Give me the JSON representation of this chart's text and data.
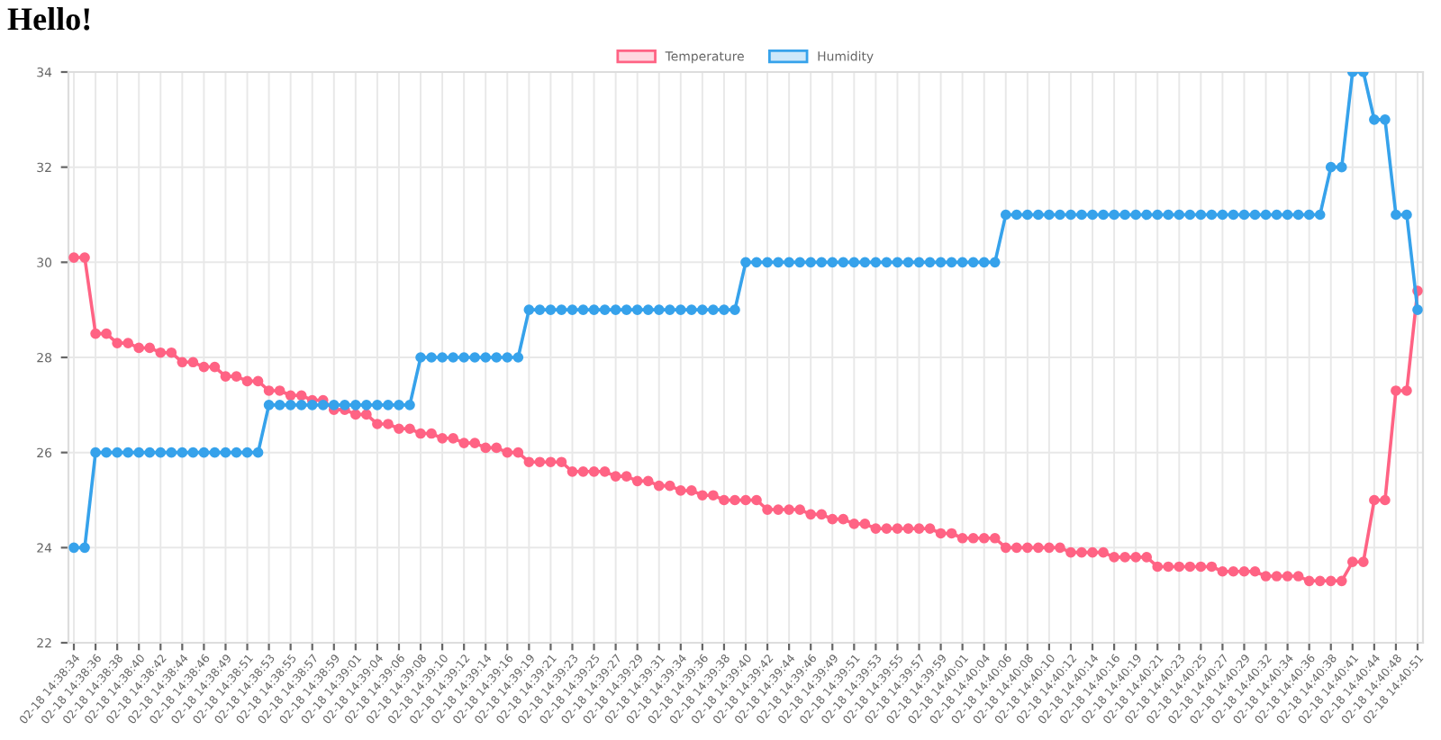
{
  "chart_data": {
    "type": "line",
    "title": "Hello!",
    "categories": [
      "02-18 14:38:34",
      null,
      "02-18 14:38:36",
      null,
      "02-18 14:38:38",
      null,
      "02-18 14:38:40",
      null,
      "02-18 14:38:42",
      null,
      "02-18 14:38:44",
      null,
      "02-18 14:38:46",
      null,
      "02-18 14:38:49",
      null,
      "02-18 14:38:51",
      null,
      "02-18 14:38:53",
      null,
      "02-18 14:38:55",
      null,
      "02-18 14:38:57",
      null,
      "02-18 14:38:59",
      null,
      "02-18 14:39:01",
      null,
      "02-18 14:39:04",
      null,
      "02-18 14:39:06",
      null,
      "02-18 14:39:08",
      null,
      "02-18 14:39:10",
      null,
      "02-18 14:39:12",
      null,
      "02-18 14:39:14",
      null,
      "02-18 14:39:16",
      null,
      "02-18 14:39:19",
      null,
      "02-18 14:39:21",
      null,
      "02-18 14:39:23",
      null,
      "02-18 14:39:25",
      null,
      "02-18 14:39:27",
      null,
      "02-18 14:39:29",
      null,
      "02-18 14:39:31",
      null,
      "02-18 14:39:34",
      null,
      "02-18 14:39:36",
      null,
      "02-18 14:39:38",
      null,
      "02-18 14:39:40",
      null,
      "02-18 14:39:42",
      null,
      "02-18 14:39:44",
      null,
      "02-18 14:39:46",
      null,
      "02-18 14:39:49",
      null,
      "02-18 14:39:51",
      null,
      "02-18 14:39:53",
      null,
      "02-18 14:39:55",
      null,
      "02-18 14:39:57",
      null,
      "02-18 14:39:59",
      null,
      "02-18 14:40:01",
      null,
      "02-18 14:40:04",
      null,
      "02-18 14:40:06",
      null,
      "02-18 14:40:08",
      null,
      "02-18 14:40:10",
      null,
      "02-18 14:40:12",
      null,
      "02-18 14:40:14",
      null,
      "02-18 14:40:16",
      null,
      "02-18 14:40:19",
      null,
      "02-18 14:40:21",
      null,
      "02-18 14:40:23",
      null,
      "02-18 14:40:25",
      null,
      "02-18 14:40:27",
      null,
      "02-18 14:40:29",
      null,
      "02-18 14:40:32",
      null,
      "02-18 14:40:34",
      null,
      "02-18 14:40:36",
      null,
      "02-18 14:40:38",
      null,
      "02-18 14:40:41",
      null,
      "02-18 14:40:44",
      null,
      "02-18 14:40:48",
      null,
      "02-18 14:40:51"
    ],
    "series": [
      {
        "name": "Temperature",
        "color": "#ff6384",
        "values": [
          30.1,
          30.1,
          28.5,
          28.5,
          28.3,
          28.3,
          28.2,
          28.2,
          28.1,
          28.1,
          27.9,
          27.9,
          27.8,
          27.8,
          27.6,
          27.6,
          27.5,
          27.5,
          27.3,
          27.3,
          27.2,
          27.2,
          27.1,
          27.1,
          26.9,
          26.9,
          26.8,
          26.8,
          26.6,
          26.6,
          26.5,
          26.5,
          26.4,
          26.4,
          26.3,
          26.3,
          26.2,
          26.2,
          26.1,
          26.1,
          26.0,
          26.0,
          25.8,
          25.8,
          25.8,
          25.8,
          25.6,
          25.6,
          25.6,
          25.6,
          25.5,
          25.5,
          25.4,
          25.4,
          25.3,
          25.3,
          25.2,
          25.2,
          25.1,
          25.1,
          25.0,
          25.0,
          25.0,
          25.0,
          24.8,
          24.8,
          24.8,
          24.8,
          24.7,
          24.7,
          24.6,
          24.6,
          24.5,
          24.5,
          24.4,
          24.4,
          24.4,
          24.4,
          24.4,
          24.4,
          24.3,
          24.3,
          24.2,
          24.2,
          24.2,
          24.2,
          24.0,
          24.0,
          24.0,
          24.0,
          24.0,
          24.0,
          23.9,
          23.9,
          23.9,
          23.9,
          23.8,
          23.8,
          23.8,
          23.8,
          23.6,
          23.6,
          23.6,
          23.6,
          23.6,
          23.6,
          23.5,
          23.5,
          23.5,
          23.5,
          23.4,
          23.4,
          23.4,
          23.4,
          23.3,
          23.3,
          23.3,
          23.3,
          23.7,
          23.7,
          25.0,
          25.0,
          27.3,
          27.3,
          29.4
        ]
      },
      {
        "name": "Humidity",
        "color": "#36a2eb",
        "values": [
          24,
          24,
          26,
          26,
          26,
          26,
          26,
          26,
          26,
          26,
          26,
          26,
          26,
          26,
          26,
          26,
          26,
          26,
          27,
          27,
          27,
          27,
          27,
          27,
          27,
          27,
          27,
          27,
          27,
          27,
          27,
          27,
          28,
          28,
          28,
          28,
          28,
          28,
          28,
          28,
          28,
          28,
          29,
          29,
          29,
          29,
          29,
          29,
          29,
          29,
          29,
          29,
          29,
          29,
          29,
          29,
          29,
          29,
          29,
          29,
          29,
          29,
          30,
          30,
          30,
          30,
          30,
          30,
          30,
          30,
          30,
          30,
          30,
          30,
          30,
          30,
          30,
          30,
          30,
          30,
          30,
          30,
          30,
          30,
          30,
          30,
          31,
          31,
          31,
          31,
          31,
          31,
          31,
          31,
          31,
          31,
          31,
          31,
          31,
          31,
          31,
          31,
          31,
          31,
          31,
          31,
          31,
          31,
          31,
          31,
          31,
          31,
          31,
          31,
          31,
          31,
          32,
          32,
          34,
          34,
          33,
          33,
          31,
          31,
          29
        ]
      }
    ],
    "ylim": [
      22,
      34
    ],
    "yticks": [
      22,
      24,
      26,
      28,
      30,
      32,
      34
    ],
    "grid": true,
    "legend": "top",
    "marker": "circle",
    "line_style": "solid"
  }
}
